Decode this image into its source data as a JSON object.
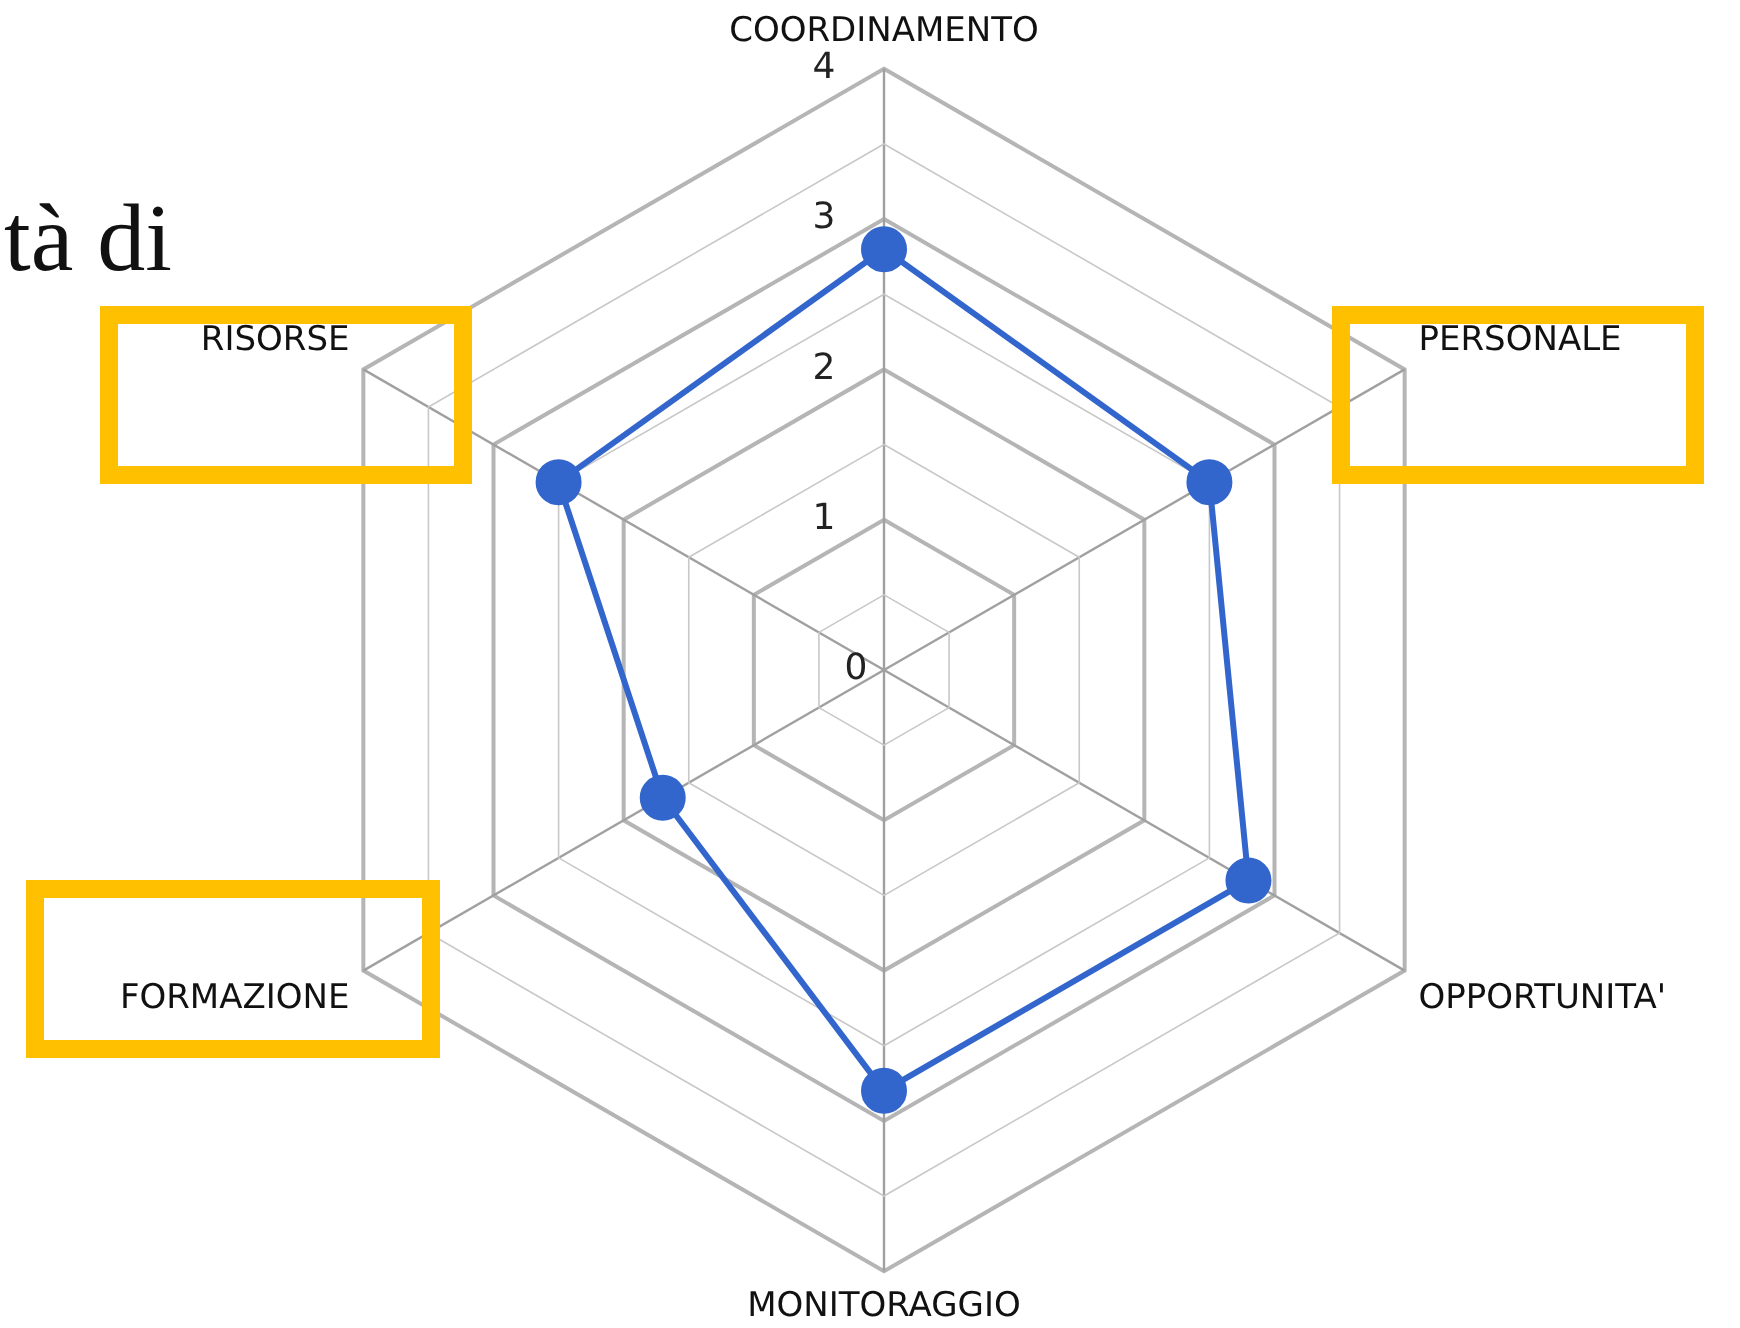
{
  "chart_data": {
    "type": "radar",
    "categories": [
      "COORDINAMENTO",
      "PERSONALE",
      "OPPORTUNITA'",
      "MONITORAGGIO",
      "FORMAZIONE",
      "RISORSE"
    ],
    "series": [
      {
        "color": "#3366cc",
        "values": [
          2.8,
          2.5,
          2.8,
          2.8,
          1.7,
          2.5
        ]
      }
    ],
    "ylim": [
      0,
      4
    ],
    "yticks": [
      0,
      1,
      2,
      3,
      4
    ],
    "grid": true,
    "marker": "circle",
    "legend": false,
    "annotations": [
      "tà di"
    ]
  }
}
